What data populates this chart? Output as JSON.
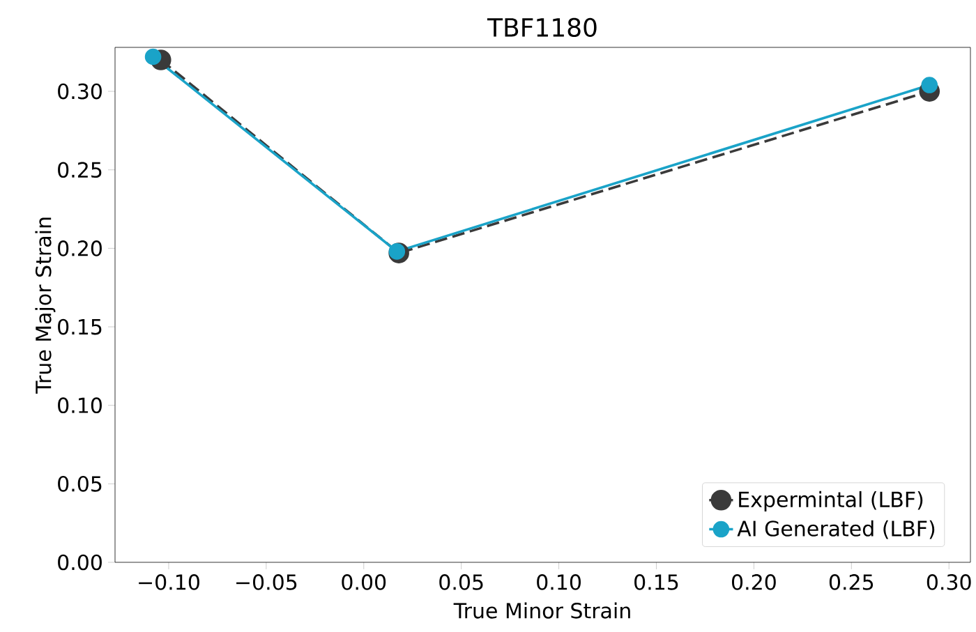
{
  "chart_data": {
    "type": "line",
    "title": "TBF1180",
    "xlabel": "True Minor Strain",
    "ylabel": "True Major Strain",
    "series": [
      {
        "name": "Expermintal (LBF)",
        "color": "#3a3a3a",
        "line_style": "dashed",
        "x": [
          -0.104,
          0.018,
          0.29
        ],
        "values": [
          0.32,
          0.197,
          0.3
        ]
      },
      {
        "name": "AI Generated (LBF)",
        "color": "#1aa3c8",
        "line_style": "solid",
        "x": [
          -0.108,
          0.017,
          0.29
        ],
        "values": [
          0.322,
          0.198,
          0.304
        ]
      }
    ],
    "marker": "circle",
    "legend": "bottom right",
    "xlim": [
      -0.1275,
      0.311
    ],
    "ylim": [
      0,
      0.328
    ],
    "xticks": [
      {
        "value": -0.1,
        "label": "−0.10"
      },
      {
        "value": -0.05,
        "label": "−0.05"
      },
      {
        "value": 0,
        "label": "0.00"
      },
      {
        "value": 0.05,
        "label": "0.05"
      },
      {
        "value": 0.1,
        "label": "0.10"
      },
      {
        "value": 0.15,
        "label": "0.15"
      },
      {
        "value": 0.2,
        "label": "0.20"
      },
      {
        "value": 0.25,
        "label": "0.25"
      },
      {
        "value": 0.3,
        "label": "0.30"
      }
    ],
    "yticks": [
      {
        "value": 0,
        "label": "0.00"
      },
      {
        "value": 0.05,
        "label": "0.05"
      },
      {
        "value": 0.1,
        "label": "0.10"
      },
      {
        "value": 0.15,
        "label": "0.15"
      },
      {
        "value": 0.2,
        "label": "0.20"
      },
      {
        "value": 0.25,
        "label": "0.25"
      },
      {
        "value": 0.3,
        "label": "0.30"
      }
    ]
  }
}
